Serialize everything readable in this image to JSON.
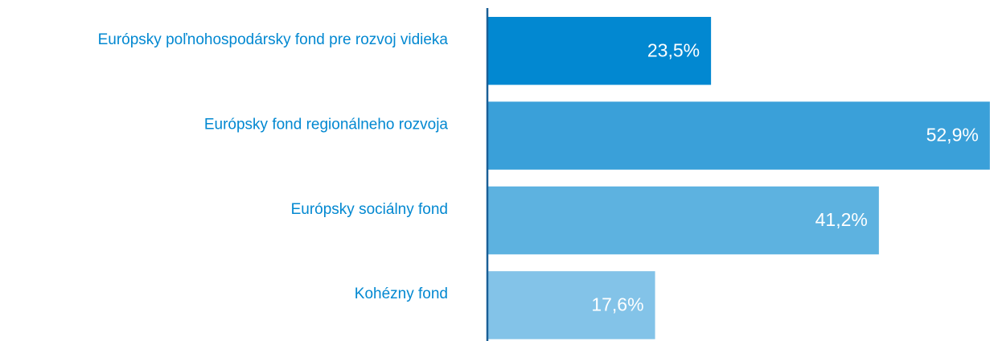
{
  "chart_data": {
    "type": "bar",
    "orientation": "horizontal",
    "categories": [
      "Európsky poľnohospodársky fond pre rozvoj vidieka",
      "Európsky fond regionálneho rozvoja",
      "Európsky sociálny fond",
      "Kohézny fond"
    ],
    "values": [
      23.5,
      52.9,
      41.2,
      17.6
    ],
    "value_labels": [
      "23,5%",
      "52,9%",
      "41,2%",
      "17,6%"
    ],
    "colors": [
      "#0288d1",
      "#3aa0d9",
      "#5db2e0",
      "#83c3e8"
    ],
    "xlim": [
      0,
      53
    ]
  }
}
